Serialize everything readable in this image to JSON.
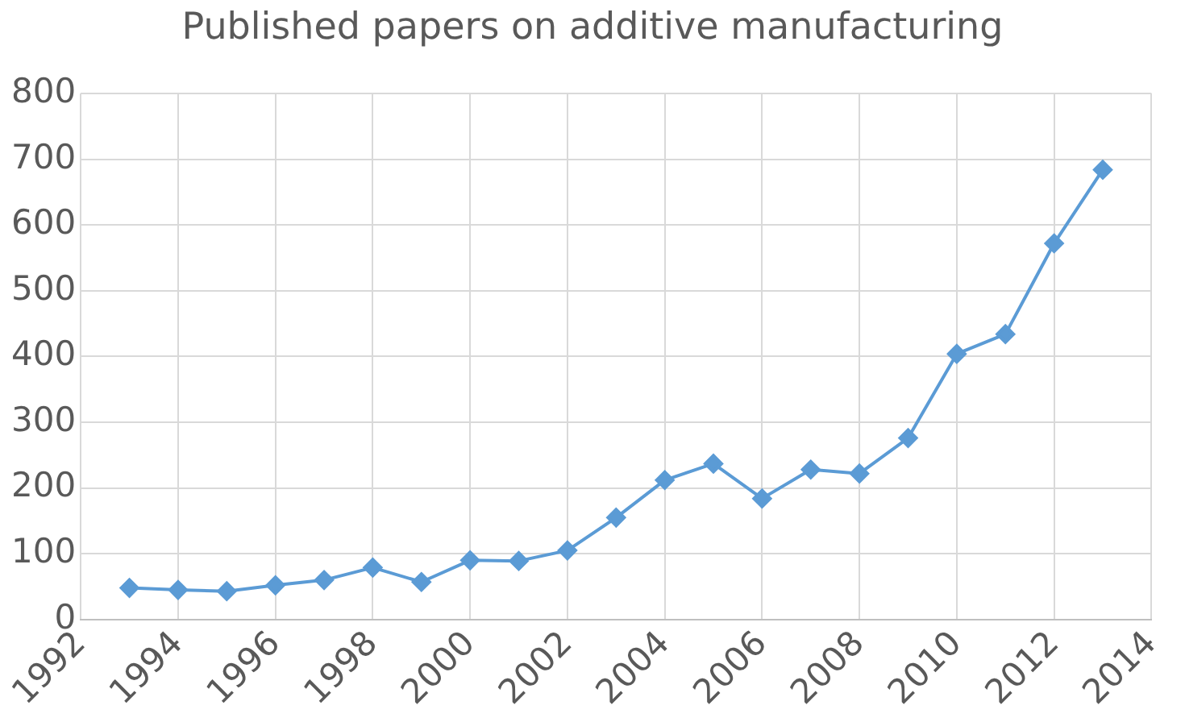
{
  "chart_data": {
    "type": "line",
    "title": "Published papers on additive manufacturing",
    "x": [
      1993,
      1994,
      1995,
      1996,
      1997,
      1998,
      1999,
      2000,
      2001,
      2002,
      2003,
      2004,
      2005,
      2006,
      2007,
      2008,
      2009,
      2010,
      2011,
      2012,
      2013
    ],
    "series": [
      {
        "color": "#5b9bd5",
        "values": [
          48,
          45,
          43,
          52,
          60,
          79,
          57,
          90,
          89,
          105,
          155,
          212,
          237,
          184,
          228,
          222,
          276,
          404,
          434,
          572,
          684
        ]
      }
    ],
    "xlim": [
      1992,
      2014
    ],
    "xticks": [
      1992,
      1994,
      1996,
      1998,
      2000,
      2002,
      2004,
      2006,
      2008,
      2010,
      2012,
      2014
    ],
    "ylim": [
      0,
      800
    ],
    "yticks": [
      0,
      100,
      200,
      300,
      400,
      500,
      600,
      700,
      800
    ],
    "grid": true,
    "legend": false,
    "marker": "diamond",
    "line_style": "solid"
  }
}
